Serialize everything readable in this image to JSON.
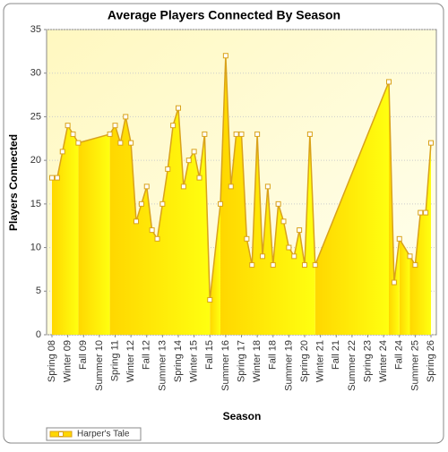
{
  "chart_data": {
    "type": "area",
    "title": "Average Players Connected By Season",
    "x_label": "Season",
    "y_label": "Players Connected",
    "categories": [
      "Spring 08",
      null,
      null,
      "Winter 09",
      null,
      null,
      "Fall 09",
      null,
      null,
      "Summer 10",
      null,
      null,
      "Spring 11",
      null,
      null,
      "Winter 12",
      null,
      null,
      "Fall 12",
      null,
      null,
      "Summer 13",
      null,
      null,
      "Spring 14",
      null,
      null,
      "Winter 15",
      null,
      null,
      "Fall 15",
      null,
      null,
      "Summer 16",
      null,
      null,
      "Spring 17",
      null,
      null,
      "Winter 18",
      null,
      null,
      "Fall 18",
      null,
      null,
      "Summer 19",
      null,
      null,
      "Spring 20",
      null,
      null,
      "Winter 21",
      null,
      null,
      "Fall 21",
      null,
      null,
      "Summer 22",
      null,
      null,
      "Spring 23",
      null,
      null,
      "Winter 24",
      null,
      null,
      "Fall 24",
      null,
      null,
      "Summer 25",
      null,
      null,
      "Spring 26"
    ],
    "series": [
      {
        "name": "Harper's Tale",
        "color": "#d9a21b",
        "values": [
          18,
          18,
          21,
          24,
          23,
          22,
          null,
          null,
          null,
          null,
          null,
          23,
          24,
          22,
          25,
          22,
          13,
          15,
          17,
          12,
          11,
          15,
          19,
          24,
          26,
          17,
          20,
          21,
          18,
          23,
          4,
          null,
          15,
          32,
          17,
          23,
          23,
          11,
          8,
          23,
          9,
          17,
          8,
          15,
          13,
          10,
          9,
          12,
          8,
          23,
          8,
          null,
          null,
          null,
          null,
          null,
          null,
          null,
          null,
          null,
          null,
          null,
          null,
          null,
          29,
          6,
          11,
          null,
          9,
          8,
          14,
          14,
          22
        ]
      }
    ],
    "ylim": [
      0,
      35
    ],
    "yticks": [
      0,
      5,
      10,
      15,
      20,
      25,
      30,
      35
    ],
    "grid": true,
    "legend": "bottom-left"
  }
}
